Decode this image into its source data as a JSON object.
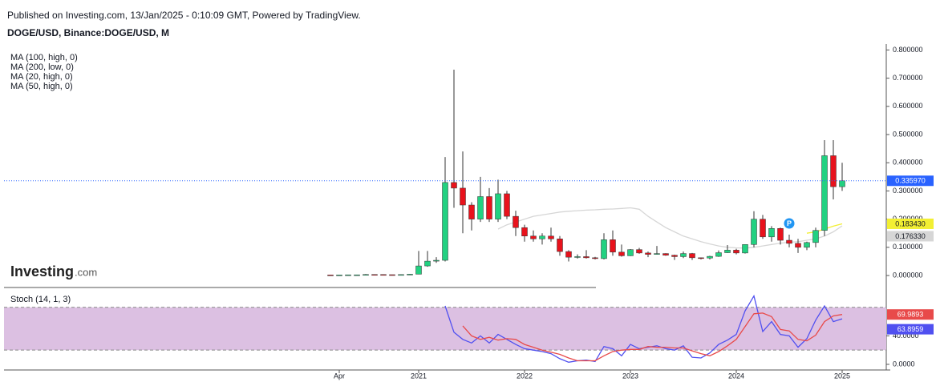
{
  "header": {
    "published": "Published on Investing.com, 13/Jan/2025 - 0:10:09 GMT, Powered by TradingView.",
    "logo_main": "Investing",
    "logo_suffix": ".com"
  },
  "chart_data": [
    {
      "type": "candlestick",
      "title": "DOGE/USD, Binance:DOGE/USD, M",
      "legend": [
        "MA (100, high, 0)",
        "MA (200, low, 0)",
        "MA (20, high, 0)",
        "MA (50, high, 0)"
      ],
      "x": [
        "2020-03",
        "2020-04",
        "2020-05",
        "2020-06",
        "2020-07",
        "2020-08",
        "2020-09",
        "2020-10",
        "2020-11",
        "2020-12",
        "2021-01",
        "2021-02",
        "2021-03",
        "2021-04",
        "2021-05",
        "2021-06",
        "2021-07",
        "2021-08",
        "2021-09",
        "2021-10",
        "2021-11",
        "2021-12",
        "2022-01",
        "2022-02",
        "2022-03",
        "2022-04",
        "2022-05",
        "2022-06",
        "2022-07",
        "2022-08",
        "2022-09",
        "2022-10",
        "2022-11",
        "2022-12",
        "2023-01",
        "2023-02",
        "2023-03",
        "2023-04",
        "2023-05",
        "2023-06",
        "2023-07",
        "2023-08",
        "2023-09",
        "2023-10",
        "2023-11",
        "2023-12",
        "2024-01",
        "2024-02",
        "2024-03",
        "2024-04",
        "2024-05",
        "2024-06",
        "2024-07",
        "2024-08",
        "2024-09",
        "2024-10",
        "2024-11",
        "2024-12",
        "2025-01"
      ],
      "open": [
        0.002,
        0.0018,
        0.002,
        0.0025,
        0.0025,
        0.0036,
        0.0035,
        0.003,
        0.0026,
        0.0034,
        0.0047,
        0.034,
        0.051,
        0.054,
        0.33,
        0.31,
        0.25,
        0.2,
        0.28,
        0.2,
        0.29,
        0.21,
        0.17,
        0.14,
        0.13,
        0.14,
        0.13,
        0.085,
        0.065,
        0.067,
        0.063,
        0.06,
        0.127,
        0.083,
        0.07,
        0.092,
        0.08,
        0.075,
        0.078,
        0.072,
        0.067,
        0.078,
        0.063,
        0.062,
        0.068,
        0.081,
        0.09,
        0.08,
        0.11,
        0.2,
        0.137,
        0.167,
        0.125,
        0.114,
        0.1,
        0.117,
        0.16,
        0.425,
        0.315
      ],
      "high": [
        0.0021,
        0.0022,
        0.0027,
        0.0026,
        0.005,
        0.0039,
        0.0036,
        0.0031,
        0.0037,
        0.0059,
        0.087,
        0.087,
        0.065,
        0.42,
        0.73,
        0.44,
        0.26,
        0.35,
        0.31,
        0.34,
        0.3,
        0.23,
        0.18,
        0.16,
        0.15,
        0.17,
        0.14,
        0.09,
        0.075,
        0.09,
        0.066,
        0.15,
        0.16,
        0.11,
        0.094,
        0.098,
        0.085,
        0.105,
        0.079,
        0.074,
        0.085,
        0.08,
        0.064,
        0.07,
        0.089,
        0.108,
        0.095,
        0.11,
        0.228,
        0.215,
        0.175,
        0.17,
        0.145,
        0.13,
        0.12,
        0.17,
        0.48,
        0.48,
        0.4
      ],
      "low": [
        0.0013,
        0.0017,
        0.0019,
        0.0023,
        0.0022,
        0.003,
        0.0025,
        0.0025,
        0.0026,
        0.0031,
        0.0046,
        0.031,
        0.045,
        0.05,
        0.24,
        0.15,
        0.16,
        0.19,
        0.19,
        0.19,
        0.2,
        0.14,
        0.12,
        0.12,
        0.11,
        0.12,
        0.07,
        0.05,
        0.06,
        0.06,
        0.057,
        0.057,
        0.07,
        0.067,
        0.069,
        0.077,
        0.065,
        0.074,
        0.07,
        0.055,
        0.062,
        0.055,
        0.057,
        0.057,
        0.066,
        0.08,
        0.075,
        0.078,
        0.1,
        0.13,
        0.12,
        0.11,
        0.1,
        0.08,
        0.09,
        0.1,
        0.14,
        0.27,
        0.3
      ],
      "close": [
        0.0018,
        0.002,
        0.0025,
        0.0025,
        0.0036,
        0.0035,
        0.003,
        0.0026,
        0.0034,
        0.0047,
        0.034,
        0.051,
        0.054,
        0.33,
        0.31,
        0.25,
        0.2,
        0.28,
        0.2,
        0.29,
        0.21,
        0.17,
        0.14,
        0.13,
        0.14,
        0.13,
        0.085,
        0.065,
        0.067,
        0.063,
        0.06,
        0.127,
        0.083,
        0.07,
        0.092,
        0.08,
        0.075,
        0.078,
        0.072,
        0.067,
        0.078,
        0.063,
        0.062,
        0.068,
        0.081,
        0.09,
        0.08,
        0.11,
        0.2,
        0.137,
        0.167,
        0.125,
        0.114,
        0.1,
        0.117,
        0.16,
        0.425,
        0.315,
        0.33597
      ],
      "up_color": "#22d181",
      "down_color": "#e8121c",
      "series": [
        {
          "color": "#d6d6d6",
          "last_label": "0.176330",
          "values": [
            null,
            null,
            null,
            null,
            null,
            null,
            null,
            null,
            null,
            null,
            null,
            null,
            null,
            null,
            null,
            null,
            null,
            null,
            null,
            0.165,
            0.18,
            0.19,
            0.2,
            0.21,
            0.215,
            0.22,
            0.225,
            0.228,
            0.23,
            0.232,
            0.233,
            0.235,
            0.236,
            0.238,
            0.24,
            0.235,
            0.21,
            0.19,
            0.17,
            0.155,
            0.14,
            0.13,
            0.12,
            0.112,
            0.105,
            0.1,
            0.098,
            0.097,
            0.1,
            0.105,
            0.11,
            0.115,
            0.118,
            0.12,
            0.125,
            0.13,
            0.14,
            0.155,
            0.17633
          ]
        },
        {
          "color": "#f2ef33",
          "last_label": "0.183430",
          "values": [
            null,
            null,
            null,
            null,
            null,
            null,
            null,
            null,
            null,
            null,
            null,
            null,
            null,
            null,
            null,
            null,
            null,
            null,
            null,
            null,
            null,
            null,
            null,
            null,
            null,
            null,
            null,
            null,
            null,
            null,
            null,
            null,
            null,
            null,
            null,
            null,
            null,
            null,
            null,
            null,
            null,
            null,
            null,
            null,
            null,
            null,
            null,
            null,
            null,
            null,
            null,
            null,
            null,
            null,
            0.15,
            0.155,
            0.165,
            0.175,
            0.18343
          ]
        }
      ],
      "price_line": {
        "value": 0.33597,
        "label": "0.335970",
        "color": "#2962ff"
      },
      "annotation": {
        "label": "P",
        "x": "2024-07",
        "color": "#2196f3"
      },
      "xlim": [
        "2017-02",
        "2025-06"
      ],
      "ylim": [
        -0.051,
        0.821
      ],
      "yticks": [
        {
          "value": 0,
          "label": "0.000000"
        },
        {
          "value": 0.1,
          "label": "0.100000"
        },
        {
          "value": 0.2,
          "label": "0.200000"
        },
        {
          "value": 0.3,
          "label": "0.300000"
        },
        {
          "value": 0.4,
          "label": "0.400000"
        },
        {
          "value": 0.5,
          "label": "0.500000"
        },
        {
          "value": 0.6,
          "label": "0.600000"
        },
        {
          "value": 0.7,
          "label": "0.700000"
        },
        {
          "value": 0.8,
          "label": "0.800000"
        }
      ]
    },
    {
      "type": "line",
      "title": "Stoch (14, 1, 3)",
      "x": [
        "2021-04",
        "2021-05",
        "2021-06",
        "2021-07",
        "2021-08",
        "2021-09",
        "2021-10",
        "2021-11",
        "2021-12",
        "2022-01",
        "2022-02",
        "2022-03",
        "2022-04",
        "2022-05",
        "2022-06",
        "2022-07",
        "2022-08",
        "2022-09",
        "2022-10",
        "2022-11",
        "2022-12",
        "2023-01",
        "2023-02",
        "2023-03",
        "2023-04",
        "2023-05",
        "2023-06",
        "2023-07",
        "2023-08",
        "2023-09",
        "2023-10",
        "2023-11",
        "2023-12",
        "2024-01",
        "2024-02",
        "2024-03",
        "2024-04",
        "2024-05",
        "2024-06",
        "2024-07",
        "2024-08",
        "2024-09",
        "2024-10",
        "2024-11",
        "2024-12",
        "2025-01"
      ],
      "series": [
        {
          "color": "#5050f0",
          "last_label": "63.8959",
          "values": [
            82,
            45,
            35,
            30,
            40,
            30,
            42,
            35,
            28,
            22,
            20,
            18,
            15,
            8,
            3,
            5,
            6,
            4,
            25,
            22,
            12,
            28,
            22,
            24,
            26,
            22,
            20,
            26,
            10,
            9,
            16,
            28,
            34,
            42,
            75,
            96,
            46,
            60,
            42,
            40,
            24,
            36,
            62,
            82,
            60,
            63.8959
          ]
        },
        {
          "color": "#e84a4a",
          "last_label": "69.9893",
          "values": [
            null,
            null,
            54,
            40,
            35,
            38,
            34,
            36,
            35,
            28,
            24,
            20,
            17,
            14,
            9,
            5,
            5,
            5,
            12,
            18,
            20,
            21,
            21,
            25,
            24,
            24,
            23,
            23,
            19,
            15,
            12,
            18,
            26,
            35,
            53,
            71,
            72,
            67,
            49,
            47,
            35,
            33,
            41,
            60,
            68,
            69.9893
          ]
        }
      ],
      "band": [
        20,
        80
      ],
      "band_color": "#dcc0e2",
      "xlim": [
        "2017-02",
        "2025-06"
      ],
      "ylim": [
        -7.9,
        100
      ],
      "yticks": [
        {
          "value": 0,
          "label": "0.0000"
        },
        {
          "value": 40,
          "label": "40.0000"
        }
      ],
      "xticks": [
        {
          "value": "2020-04",
          "label": "Apr"
        },
        {
          "value": "2021-01",
          "label": "2021"
        },
        {
          "value": "2022-01",
          "label": "2022"
        },
        {
          "value": "2023-01",
          "label": "2023"
        },
        {
          "value": "2024-01",
          "label": "2024"
        },
        {
          "value": "2025-01",
          "label": "2025"
        }
      ]
    }
  ]
}
